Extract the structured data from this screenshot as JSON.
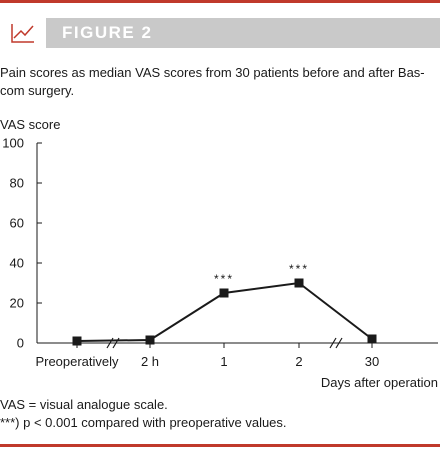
{
  "figure": {
    "title": "FIGURE 2",
    "icon": "line-chart-icon",
    "caption": "Pain scores as median VAS scores from 30 patients before and after Bas-com surgery.",
    "accent_color": "#c0392b",
    "header_bg": "#c9c9c9"
  },
  "chart_data": {
    "type": "line",
    "ylabel": "VAS score",
    "xlabel": "Days after operation",
    "ylim": [
      0,
      100
    ],
    "yticks": [
      0,
      20,
      40,
      60,
      80,
      100
    ],
    "categories": [
      "Preoperatively",
      "2 h",
      "1",
      "2",
      "30"
    ],
    "series": [
      {
        "values": [
          1,
          1.5,
          25,
          30,
          2
        ]
      }
    ],
    "annotations": [
      {
        "category": "1",
        "text": "***"
      },
      {
        "category": "2",
        "text": "***"
      }
    ],
    "axis_breaks": [
      "between Preoperatively and 2 h",
      "between 2 and 30"
    ],
    "grid": false,
    "legend": "none"
  },
  "footnotes": [
    "VAS = visual analogue scale.",
    "***) p < 0.001 compared with preoperative values."
  ]
}
